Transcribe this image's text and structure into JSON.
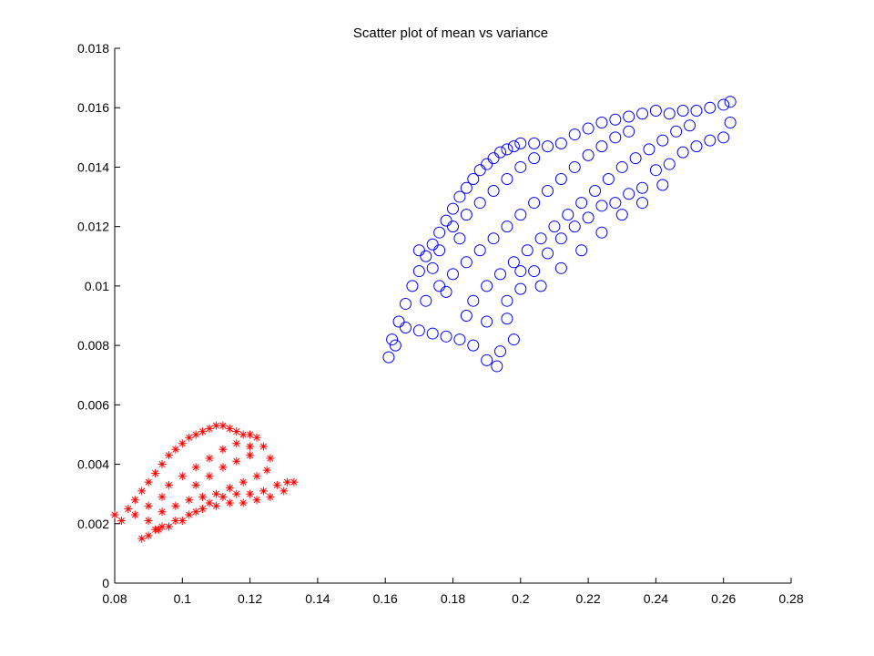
{
  "chart_data": {
    "type": "scatter",
    "title": "Scatter plot of mean vs variance",
    "xlabel": "",
    "ylabel": "",
    "xlim": [
      0.08,
      0.28
    ],
    "ylim": [
      0,
      0.018
    ],
    "x_ticks": [
      "0.08",
      "0.1",
      "0.12",
      "0.14",
      "0.16",
      "0.18",
      "0.2",
      "0.22",
      "0.24",
      "0.26",
      "0.28"
    ],
    "y_ticks": [
      "0",
      "0.002",
      "0.004",
      "0.006",
      "0.008",
      "0.01",
      "0.012",
      "0.014",
      "0.016",
      "0.018"
    ],
    "grid": false,
    "legend": "none",
    "series": [
      {
        "marker": "*",
        "color": "#ff0000",
        "points": [
          [
            0.08,
            0.0023
          ],
          [
            0.082,
            0.0021
          ],
          [
            0.084,
            0.0025
          ],
          [
            0.086,
            0.0028
          ],
          [
            0.088,
            0.0031
          ],
          [
            0.09,
            0.0034
          ],
          [
            0.092,
            0.0037
          ],
          [
            0.094,
            0.004
          ],
          [
            0.096,
            0.0043
          ],
          [
            0.098,
            0.0045
          ],
          [
            0.1,
            0.0047
          ],
          [
            0.102,
            0.0049
          ],
          [
            0.104,
            0.005
          ],
          [
            0.106,
            0.0051
          ],
          [
            0.108,
            0.0052
          ],
          [
            0.11,
            0.0053
          ],
          [
            0.112,
            0.0053
          ],
          [
            0.114,
            0.0052
          ],
          [
            0.116,
            0.0051
          ],
          [
            0.118,
            0.005
          ],
          [
            0.12,
            0.005
          ],
          [
            0.122,
            0.0049
          ],
          [
            0.124,
            0.0046
          ],
          [
            0.126,
            0.0042
          ],
          [
            0.125,
            0.0038
          ],
          [
            0.122,
            0.0036
          ],
          [
            0.118,
            0.0034
          ],
          [
            0.114,
            0.0032
          ],
          [
            0.11,
            0.003
          ],
          [
            0.106,
            0.0029
          ],
          [
            0.102,
            0.0028
          ],
          [
            0.098,
            0.0026
          ],
          [
            0.094,
            0.0024
          ],
          [
            0.09,
            0.0021
          ],
          [
            0.088,
            0.0015
          ],
          [
            0.09,
            0.0016
          ],
          [
            0.093,
            0.0018
          ],
          [
            0.096,
            0.0019
          ],
          [
            0.1,
            0.0021
          ],
          [
            0.104,
            0.0024
          ],
          [
            0.108,
            0.0027
          ],
          [
            0.112,
            0.0029
          ],
          [
            0.116,
            0.003
          ],
          [
            0.12,
            0.003
          ],
          [
            0.124,
            0.0031
          ],
          [
            0.128,
            0.0033
          ],
          [
            0.131,
            0.0034
          ],
          [
            0.133,
            0.0034
          ],
          [
            0.13,
            0.0031
          ],
          [
            0.126,
            0.0029
          ],
          [
            0.122,
            0.0028
          ],
          [
            0.118,
            0.0027
          ],
          [
            0.114,
            0.0027
          ],
          [
            0.11,
            0.0026
          ],
          [
            0.106,
            0.0025
          ],
          [
            0.102,
            0.0023
          ],
          [
            0.098,
            0.0021
          ],
          [
            0.094,
            0.0019
          ],
          [
            0.092,
            0.0018
          ],
          [
            0.096,
            0.0033
          ],
          [
            0.1,
            0.0036
          ],
          [
            0.104,
            0.0039
          ],
          [
            0.108,
            0.0042
          ],
          [
            0.112,
            0.0045
          ],
          [
            0.116,
            0.0047
          ],
          [
            0.12,
            0.0046
          ],
          [
            0.104,
            0.0033
          ],
          [
            0.108,
            0.0036
          ],
          [
            0.112,
            0.0039
          ],
          [
            0.116,
            0.0041
          ],
          [
            0.12,
            0.0043
          ],
          [
            0.086,
            0.0023
          ],
          [
            0.09,
            0.0026
          ],
          [
            0.094,
            0.0029
          ]
        ]
      },
      {
        "marker": "o",
        "color": "#0000ff",
        "points": [
          [
            0.161,
            0.0076
          ],
          [
            0.162,
            0.0082
          ],
          [
            0.164,
            0.0088
          ],
          [
            0.166,
            0.0094
          ],
          [
            0.168,
            0.01
          ],
          [
            0.17,
            0.0105
          ],
          [
            0.172,
            0.011
          ],
          [
            0.174,
            0.0114
          ],
          [
            0.176,
            0.0118
          ],
          [
            0.178,
            0.0122
          ],
          [
            0.18,
            0.0126
          ],
          [
            0.182,
            0.013
          ],
          [
            0.184,
            0.0133
          ],
          [
            0.186,
            0.0136
          ],
          [
            0.188,
            0.0139
          ],
          [
            0.19,
            0.0141
          ],
          [
            0.192,
            0.0143
          ],
          [
            0.194,
            0.0145
          ],
          [
            0.196,
            0.0146
          ],
          [
            0.198,
            0.0147
          ],
          [
            0.2,
            0.0148
          ],
          [
            0.204,
            0.0148
          ],
          [
            0.208,
            0.0147
          ],
          [
            0.212,
            0.0148
          ],
          [
            0.216,
            0.0151
          ],
          [
            0.22,
            0.0153
          ],
          [
            0.224,
            0.0155
          ],
          [
            0.228,
            0.0156
          ],
          [
            0.232,
            0.0157
          ],
          [
            0.236,
            0.0158
          ],
          [
            0.24,
            0.0159
          ],
          [
            0.244,
            0.0158
          ],
          [
            0.248,
            0.0159
          ],
          [
            0.252,
            0.0159
          ],
          [
            0.256,
            0.016
          ],
          [
            0.26,
            0.0161
          ],
          [
            0.262,
            0.0162
          ],
          [
            0.262,
            0.0155
          ],
          [
            0.26,
            0.015
          ],
          [
            0.256,
            0.0149
          ],
          [
            0.252,
            0.0147
          ],
          [
            0.248,
            0.0145
          ],
          [
            0.244,
            0.0141
          ],
          [
            0.24,
            0.0139
          ],
          [
            0.236,
            0.0133
          ],
          [
            0.232,
            0.0131
          ],
          [
            0.228,
            0.0128
          ],
          [
            0.224,
            0.0127
          ],
          [
            0.22,
            0.0123
          ],
          [
            0.216,
            0.012
          ],
          [
            0.212,
            0.0116
          ],
          [
            0.208,
            0.0111
          ],
          [
            0.204,
            0.0105
          ],
          [
            0.2,
            0.0099
          ],
          [
            0.196,
            0.0089
          ],
          [
            0.193,
            0.0073
          ],
          [
            0.19,
            0.0075
          ],
          [
            0.186,
            0.008
          ],
          [
            0.182,
            0.0082
          ],
          [
            0.178,
            0.0083
          ],
          [
            0.174,
            0.0084
          ],
          [
            0.17,
            0.0085
          ],
          [
            0.166,
            0.0086
          ],
          [
            0.163,
            0.008
          ],
          [
            0.172,
            0.0095
          ],
          [
            0.176,
            0.01
          ],
          [
            0.18,
            0.0104
          ],
          [
            0.184,
            0.0108
          ],
          [
            0.188,
            0.0112
          ],
          [
            0.192,
            0.0116
          ],
          [
            0.196,
            0.012
          ],
          [
            0.2,
            0.0124
          ],
          [
            0.204,
            0.0128
          ],
          [
            0.208,
            0.0132
          ],
          [
            0.212,
            0.0136
          ],
          [
            0.216,
            0.014
          ],
          [
            0.22,
            0.0144
          ],
          [
            0.224,
            0.0147
          ],
          [
            0.228,
            0.015
          ],
          [
            0.232,
            0.0152
          ],
          [
            0.186,
            0.0095
          ],
          [
            0.19,
            0.01
          ],
          [
            0.194,
            0.0104
          ],
          [
            0.198,
            0.0108
          ],
          [
            0.202,
            0.0112
          ],
          [
            0.206,
            0.0116
          ],
          [
            0.21,
            0.012
          ],
          [
            0.214,
            0.0124
          ],
          [
            0.218,
            0.0128
          ],
          [
            0.222,
            0.0132
          ],
          [
            0.226,
            0.0136
          ],
          [
            0.23,
            0.014
          ],
          [
            0.234,
            0.0143
          ],
          [
            0.238,
            0.0146
          ],
          [
            0.242,
            0.0149
          ],
          [
            0.246,
            0.0152
          ],
          [
            0.25,
            0.0154
          ],
          [
            0.18,
            0.012
          ],
          [
            0.184,
            0.0124
          ],
          [
            0.188,
            0.0128
          ],
          [
            0.192,
            0.0132
          ],
          [
            0.196,
            0.0136
          ],
          [
            0.2,
            0.014
          ],
          [
            0.204,
            0.0143
          ],
          [
            0.176,
            0.0112
          ],
          [
            0.182,
            0.0116
          ],
          [
            0.196,
            0.0095
          ],
          [
            0.2,
            0.0105
          ],
          [
            0.206,
            0.01
          ],
          [
            0.212,
            0.0106
          ],
          [
            0.218,
            0.0112
          ],
          [
            0.224,
            0.0118
          ],
          [
            0.23,
            0.0124
          ],
          [
            0.236,
            0.0128
          ],
          [
            0.242,
            0.0134
          ],
          [
            0.17,
            0.0112
          ],
          [
            0.174,
            0.0106
          ],
          [
            0.178,
            0.0098
          ],
          [
            0.184,
            0.009
          ],
          [
            0.19,
            0.0088
          ],
          [
            0.198,
            0.0082
          ],
          [
            0.194,
            0.0078
          ]
        ]
      }
    ]
  }
}
